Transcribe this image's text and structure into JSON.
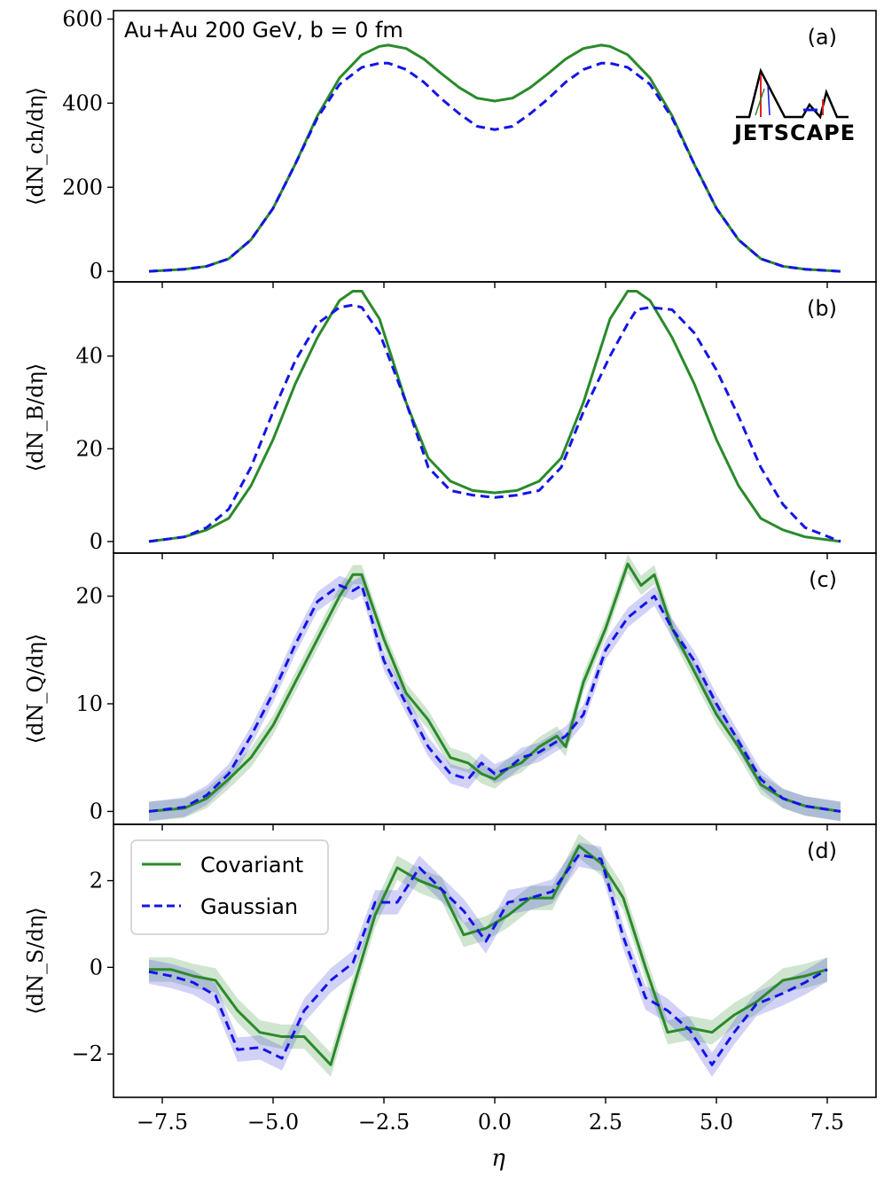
{
  "figure": {
    "title": "Au+Au 200 GeV, b = 0 fm",
    "xlabel": "η",
    "logo_text": "JETSCAPE",
    "colors": {
      "covariant": "#2a8a2a",
      "gaussian": "#1414e6",
      "covariant_band": "#2a8a2a",
      "gaussian_band": "#3030e0"
    }
  },
  "legend": {
    "covariant": "Covariant",
    "gaussian": "Gaussian",
    "placement": "top-left of panel (d)"
  },
  "chart_data": [
    {
      "type": "line",
      "panel": "(a)",
      "ylabel": "⟨dN_ch/dη⟩",
      "xlim": [
        -8.6,
        8.6
      ],
      "ylim": [
        -25,
        620
      ],
      "yticks": [
        0,
        200,
        400,
        600
      ],
      "xticks": [
        -7.5,
        -5.0,
        -2.5,
        0.0,
        2.5,
        5.0,
        7.5
      ],
      "series": [
        {
          "name": "Covariant",
          "style": "solid",
          "x": [
            -7.8,
            -7.0,
            -6.5,
            -6.0,
            -5.5,
            -5.0,
            -4.5,
            -4.0,
            -3.5,
            -3.0,
            -2.6,
            -2.4,
            -2.0,
            -1.6,
            -1.2,
            -0.8,
            -0.4,
            0,
            0.4,
            0.8,
            1.2,
            1.6,
            2.0,
            2.4,
            2.6,
            3.0,
            3.5,
            4.0,
            4.5,
            5.0,
            5.5,
            6.0,
            6.5,
            7.0,
            7.8
          ],
          "y": [
            0,
            5,
            12,
            30,
            75,
            150,
            255,
            370,
            460,
            515,
            535,
            538,
            530,
            505,
            470,
            437,
            412,
            405,
            412,
            437,
            470,
            505,
            530,
            538,
            535,
            515,
            460,
            370,
            255,
            150,
            75,
            30,
            12,
            5,
            0
          ]
        },
        {
          "name": "Gaussian",
          "style": "dashed",
          "x": [
            -7.8,
            -7.0,
            -6.5,
            -6.0,
            -5.5,
            -5.0,
            -4.5,
            -4.0,
            -3.5,
            -3.0,
            -2.6,
            -2.4,
            -2.0,
            -1.6,
            -1.2,
            -0.8,
            -0.4,
            0,
            0.4,
            0.8,
            1.2,
            1.6,
            2.0,
            2.4,
            2.6,
            3.0,
            3.5,
            4.0,
            4.5,
            5.0,
            5.5,
            6.0,
            6.5,
            7.0,
            7.8
          ],
          "y": [
            0,
            5,
            12,
            30,
            75,
            150,
            255,
            365,
            445,
            485,
            495,
            495,
            480,
            450,
            410,
            375,
            345,
            337,
            345,
            375,
            410,
            450,
            480,
            495,
            495,
            485,
            445,
            365,
            255,
            150,
            75,
            30,
            12,
            5,
            0
          ]
        }
      ]
    },
    {
      "type": "line",
      "panel": "(b)",
      "ylabel": "⟨dN_B/dη⟩",
      "xlim": [
        -8.6,
        8.6
      ],
      "ylim": [
        -2.5,
        56
      ],
      "yticks": [
        0,
        20,
        40
      ],
      "series": [
        {
          "name": "Covariant",
          "style": "solid",
          "x": [
            -7.8,
            -7.0,
            -6.5,
            -6.0,
            -5.5,
            -5.0,
            -4.5,
            -4.0,
            -3.5,
            -3.2,
            -3.0,
            -2.6,
            -2.0,
            -1.5,
            -1.0,
            -0.5,
            0,
            0.5,
            1.0,
            1.5,
            2.0,
            2.6,
            3.0,
            3.2,
            3.5,
            4.0,
            4.5,
            5.0,
            5.5,
            6.0,
            6.5,
            7.0,
            7.8
          ],
          "y": [
            0,
            1,
            2.5,
            5,
            12,
            22,
            34,
            44,
            52,
            54,
            54,
            48,
            30,
            18,
            13,
            11,
            10.5,
            11,
            13,
            18,
            30,
            48,
            54,
            54,
            52,
            44,
            34,
            22,
            12,
            5,
            2.5,
            1,
            0
          ]
        },
        {
          "name": "Gaussian",
          "style": "dashed",
          "x": [
            -7.8,
            -7.0,
            -6.5,
            -6.0,
            -5.5,
            -5.0,
            -4.5,
            -4.0,
            -3.5,
            -3.2,
            -3.0,
            -2.6,
            -2.0,
            -1.5,
            -1.0,
            -0.5,
            0,
            0.5,
            1.0,
            1.5,
            2.0,
            2.6,
            3.0,
            3.2,
            3.5,
            4.0,
            4.5,
            5.0,
            5.5,
            6.0,
            6.5,
            7.0,
            7.8
          ],
          "y": [
            0,
            1,
            3,
            7,
            16,
            28,
            39,
            47,
            50.5,
            51,
            50.5,
            45,
            30,
            16,
            11,
            10,
            9.5,
            10,
            11,
            16,
            28,
            40,
            47,
            50,
            50.5,
            50,
            45,
            37,
            27,
            16,
            8,
            3,
            0
          ]
        }
      ]
    },
    {
      "type": "line",
      "panel": "(c)",
      "ylabel": "⟨dN_Q/dη⟩",
      "xlim": [
        -8.6,
        8.6
      ],
      "ylim": [
        -1.2,
        24
      ],
      "yticks": [
        0,
        10,
        20
      ],
      "series": [
        {
          "name": "Covariant",
          "style": "solid",
          "x": [
            -7.8,
            -7.0,
            -6.5,
            -6.0,
            -5.5,
            -5.0,
            -4.5,
            -4.0,
            -3.5,
            -3.2,
            -3.0,
            -2.5,
            -2.0,
            -1.5,
            -1.0,
            -0.6,
            -0.3,
            0,
            0.3,
            0.6,
            1.0,
            1.4,
            1.6,
            2.0,
            2.5,
            3.0,
            3.3,
            3.6,
            4.0,
            4.5,
            5.0,
            5.5,
            6.0,
            6.5,
            7.0,
            7.8
          ],
          "y": [
            0,
            0.3,
            1.2,
            3,
            5,
            8,
            12,
            16,
            20,
            22,
            22,
            16,
            11,
            8.5,
            5,
            4.5,
            3.5,
            3,
            4,
            4.5,
            6,
            7,
            6,
            12,
            17,
            23,
            21,
            22,
            17,
            13,
            9,
            6,
            2.5,
            1.2,
            0.5,
            0
          ]
        },
        {
          "name": "Gaussian",
          "style": "dashed",
          "x": [
            -7.8,
            -7.0,
            -6.5,
            -6.0,
            -5.5,
            -5.0,
            -4.5,
            -4.0,
            -3.5,
            -3.2,
            -3.0,
            -2.5,
            -2.0,
            -1.5,
            -1.0,
            -0.6,
            -0.3,
            0,
            0.3,
            0.6,
            1.0,
            1.4,
            1.6,
            2.0,
            2.5,
            3.0,
            3.3,
            3.6,
            4.0,
            4.5,
            5.0,
            5.5,
            6.0,
            6.5,
            7.0,
            7.8
          ],
          "y": [
            0,
            0.4,
            1.5,
            3.5,
            7,
            11,
            15.5,
            19.5,
            21,
            20.5,
            21,
            14,
            10,
            6,
            3.5,
            3,
            4.5,
            3.5,
            4,
            5,
            5.5,
            6.5,
            7,
            9,
            15,
            18,
            19,
            20,
            17,
            14,
            10,
            6.5,
            3,
            1.2,
            0.5,
            0
          ]
        }
      ]
    },
    {
      "type": "line",
      "panel": "(d)",
      "ylabel": "⟨dN_S/dη⟩",
      "xlim": [
        -8.6,
        8.6
      ],
      "ylim": [
        -3,
        3.3
      ],
      "yticks": [
        -2,
        0,
        2
      ],
      "series": [
        {
          "name": "Covariant",
          "style": "solid",
          "x": [
            -7.8,
            -7.3,
            -6.8,
            -6.3,
            -5.8,
            -5.3,
            -4.8,
            -4.3,
            -3.7,
            -3.2,
            -2.7,
            -2.2,
            -1.7,
            -1.2,
            -0.7,
            -0.2,
            0.3,
            0.8,
            1.3,
            1.9,
            2.4,
            2.9,
            3.4,
            3.9,
            4.4,
            4.9,
            5.4,
            5.9,
            6.5,
            7.0,
            7.5
          ],
          "y": [
            -0.05,
            -0.05,
            -0.2,
            -0.3,
            -1.0,
            -1.5,
            -1.6,
            -1.6,
            -2.25,
            -0.5,
            1.2,
            2.3,
            2.0,
            1.8,
            0.75,
            0.9,
            1.2,
            1.6,
            1.6,
            2.8,
            2.4,
            1.6,
            0.0,
            -1.5,
            -1.4,
            -1.5,
            -1.1,
            -0.8,
            -0.3,
            -0.2,
            -0.05
          ]
        },
        {
          "name": "Gaussian",
          "style": "dashed",
          "x": [
            -7.8,
            -7.3,
            -6.8,
            -6.3,
            -5.8,
            -5.3,
            -4.8,
            -4.3,
            -3.7,
            -3.2,
            -2.7,
            -2.2,
            -1.7,
            -1.2,
            -0.7,
            -0.2,
            0.3,
            0.8,
            1.3,
            1.9,
            2.4,
            2.9,
            3.4,
            3.9,
            4.4,
            4.9,
            5.4,
            5.9,
            6.5,
            7.0,
            7.5
          ],
          "y": [
            -0.1,
            -0.2,
            -0.35,
            -0.65,
            -1.9,
            -1.85,
            -2.1,
            -1.0,
            -0.3,
            0.1,
            1.5,
            1.5,
            2.3,
            1.8,
            1.3,
            0.6,
            1.5,
            1.6,
            1.75,
            2.6,
            2.5,
            0.7,
            -0.7,
            -1.0,
            -1.45,
            -2.25,
            -1.5,
            -0.85,
            -0.6,
            -0.35,
            -0.05
          ]
        }
      ]
    }
  ]
}
